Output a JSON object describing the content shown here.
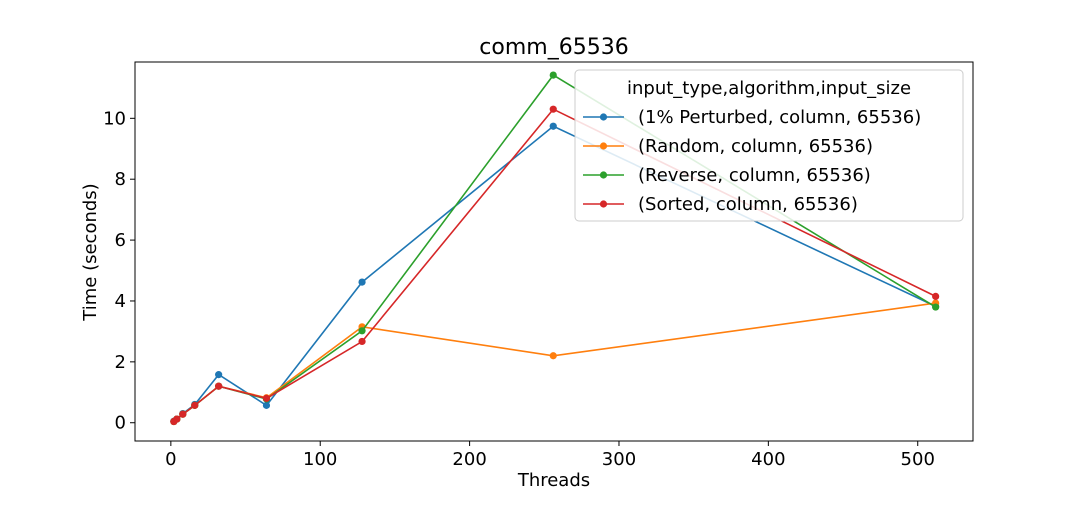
{
  "chart_data": {
    "type": "line",
    "title": "comm_65536",
    "xlabel": "Threads",
    "ylabel": "Time (seconds)",
    "xlim": [
      -24,
      537
    ],
    "ylim": [
      -0.6,
      11.85
    ],
    "xticks": [
      0,
      100,
      200,
      300,
      400,
      500
    ],
    "xtick_labels": [
      "0",
      "100",
      "200",
      "300",
      "400",
      "500"
    ],
    "yticks": [
      0,
      2,
      4,
      6,
      8,
      10
    ],
    "ytick_labels": [
      "0",
      "2",
      "4",
      "6",
      "8",
      "10"
    ],
    "grid": false,
    "legend": {
      "title": "input_type,algorithm,input_size",
      "placement": "upper right"
    },
    "x": [
      2,
      4,
      8,
      16,
      32,
      64,
      128,
      256,
      512
    ],
    "series": [
      {
        "name": "(1% Perturbed, column, 65536)",
        "color": "#1f77b4",
        "values": [
          0.05,
          0.12,
          0.3,
          0.6,
          1.58,
          0.57,
          4.62,
          9.74,
          3.82
        ]
      },
      {
        "name": "(Random, column, 65536)",
        "color": "#ff7f0e",
        "values": [
          0.04,
          0.12,
          0.28,
          0.57,
          1.2,
          0.82,
          3.15,
          2.2,
          3.93
        ]
      },
      {
        "name": "(Reverse, column, 65536)",
        "color": "#2ca02c",
        "values": [
          0.04,
          0.12,
          0.28,
          0.57,
          1.2,
          0.78,
          3.02,
          11.42,
          3.8
        ]
      },
      {
        "name": "(Sorted, column, 65536)",
        "color": "#d62728",
        "values": [
          0.04,
          0.12,
          0.28,
          0.57,
          1.2,
          0.8,
          2.67,
          10.3,
          4.15
        ]
      }
    ]
  }
}
